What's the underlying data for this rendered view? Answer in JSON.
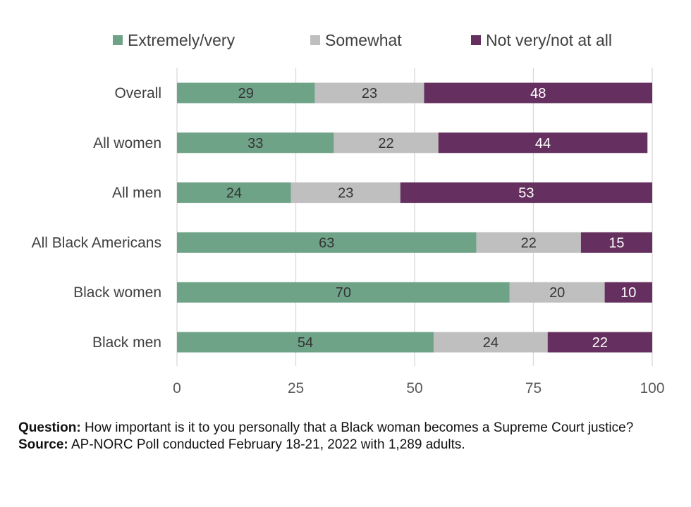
{
  "chart_data": {
    "type": "bar",
    "orientation": "horizontal",
    "stacked": true,
    "categories": [
      "Overall",
      "All women",
      "All men",
      "All Black Americans",
      "Black women",
      "Black men"
    ],
    "series": [
      {
        "name": "Extremely/very",
        "color": "#6fa388",
        "label_color": "#333333",
        "values": [
          29,
          33,
          24,
          63,
          70,
          54
        ]
      },
      {
        "name": "Somewhat",
        "color": "#bfbfbf",
        "label_color": "#333333",
        "values": [
          23,
          22,
          23,
          22,
          20,
          24
        ]
      },
      {
        "name": "Not very/not at all",
        "color": "#65305f",
        "label_color": "#ffffff",
        "values": [
          48,
          44,
          53,
          15,
          10,
          22
        ]
      }
    ],
    "xlim": [
      0,
      100
    ],
    "xticks": [
      0,
      25,
      50,
      75,
      100
    ],
    "grid": "vertical",
    "legend": "top"
  },
  "notes": {
    "question_label": "Question:",
    "question_text": " How important is it to you personally that a Black woman becomes a Supreme Court justice?",
    "source_label": "Source:",
    "source_text": " AP-NORC Poll conducted February 18-21, 2022 with 1,289 adults."
  }
}
